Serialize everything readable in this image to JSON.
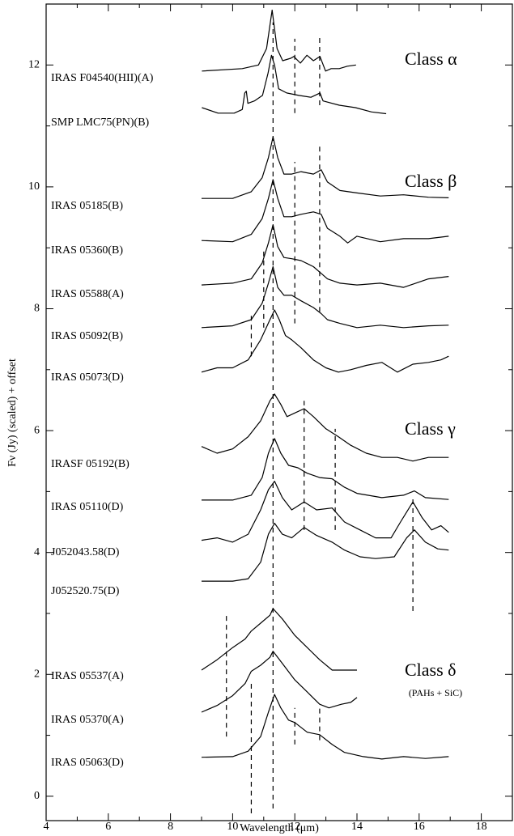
{
  "chart_data": {
    "type": "line",
    "xlabel": "Wavelength (μm)",
    "ylabel": "Fν (Jy) (scaled) + offset",
    "xlim": [
      4,
      19
    ],
    "ylim": [
      -0.4,
      13.0
    ],
    "xticks": [
      4,
      6,
      8,
      10,
      12,
      14,
      16,
      18
    ],
    "yticks": [
      0,
      2,
      4,
      6,
      8,
      10,
      12
    ],
    "line_color": "#000000",
    "annotations": [
      "Class α",
      "Class β",
      "Class γ",
      "Class δ",
      "(PAHs + SiC)"
    ],
    "series": [
      {
        "name": "IRAS F04540(HII)(A)",
        "x": [
          9.01,
          10.31,
          10.83,
          11.09,
          11.27,
          11.43,
          11.61,
          11.87,
          11.97,
          12.18,
          12.39,
          12.6,
          12.81,
          12.99,
          13.17,
          13.43,
          13.69,
          13.97
        ],
        "values": [
          11.9,
          11.94,
          12.0,
          12.27,
          12.9,
          12.27,
          12.07,
          12.11,
          12.14,
          12.03,
          12.16,
          12.07,
          12.14,
          11.9,
          11.94,
          11.94,
          11.98,
          12.0
        ]
      },
      {
        "name": "SMP LMC75(PN)(B)",
        "x": [
          9.01,
          9.53,
          10.05,
          10.31,
          10.39,
          10.44,
          10.49,
          10.7,
          10.96,
          11.14,
          11.25,
          11.35,
          11.48,
          11.74,
          12.13,
          12.52,
          12.81,
          12.91,
          13.43,
          13.95,
          14.47,
          14.94
        ],
        "values": [
          11.3,
          11.21,
          11.21,
          11.27,
          11.54,
          11.57,
          11.37,
          11.41,
          11.5,
          11.87,
          12.16,
          12.0,
          11.61,
          11.54,
          11.5,
          11.47,
          11.54,
          11.41,
          11.34,
          11.3,
          11.23,
          11.2
        ]
      },
      {
        "name": "IRAS 05185(B)",
        "x": [
          9.0,
          10.0,
          10.6,
          10.95,
          11.15,
          11.3,
          11.45,
          11.65,
          11.9,
          12.2,
          12.6,
          12.85,
          13.05,
          13.45,
          14.0,
          14.75,
          15.5,
          16.3,
          16.95
        ],
        "values": [
          9.81,
          9.81,
          9.92,
          10.15,
          10.48,
          10.82,
          10.48,
          10.21,
          10.21,
          10.25,
          10.21,
          10.28,
          10.08,
          9.94,
          9.9,
          9.85,
          9.87,
          9.83,
          9.82
        ]
      },
      {
        "name": "IRAS 05360(B)",
        "x": [
          9.0,
          10.0,
          10.6,
          10.95,
          11.15,
          11.3,
          11.45,
          11.65,
          11.9,
          12.2,
          12.6,
          12.85,
          13.05,
          13.45,
          13.7,
          14.0,
          14.75,
          15.5,
          16.3,
          16.95
        ],
        "values": [
          9.12,
          9.1,
          9.22,
          9.48,
          9.81,
          10.12,
          9.81,
          9.51,
          9.51,
          9.55,
          9.59,
          9.55,
          9.32,
          9.19,
          9.08,
          9.19,
          9.1,
          9.15,
          9.15,
          9.19
        ]
      },
      {
        "name": "IRAS 05588(A)",
        "x": [
          9.0,
          10.0,
          10.6,
          10.95,
          11.15,
          11.3,
          11.45,
          11.65,
          11.9,
          12.2,
          12.6,
          12.85,
          13.05,
          13.45,
          14.0,
          14.75,
          15.5,
          16.3,
          16.95
        ],
        "values": [
          8.39,
          8.42,
          8.49,
          8.75,
          9.08,
          9.38,
          9.02,
          8.84,
          8.82,
          8.79,
          8.69,
          8.58,
          8.49,
          8.42,
          8.39,
          8.42,
          8.35,
          8.49,
          8.53
        ]
      },
      {
        "name": "IRAS 05092(B)",
        "x": [
          9.0,
          10.0,
          10.6,
          10.95,
          11.15,
          11.3,
          11.45,
          11.65,
          11.9,
          12.2,
          12.6,
          12.85,
          13.05,
          13.45,
          14.0,
          14.75,
          15.5,
          16.3,
          16.95
        ],
        "values": [
          7.69,
          7.72,
          7.82,
          8.09,
          8.42,
          8.69,
          8.35,
          8.22,
          8.22,
          8.13,
          8.02,
          7.92,
          7.82,
          7.76,
          7.69,
          7.73,
          7.69,
          7.72,
          7.73
        ]
      },
      {
        "name": "IRAS 05073(D)",
        "x": [
          9.0,
          9.5,
          10.0,
          10.5,
          10.9,
          11.2,
          11.35,
          11.5,
          11.7,
          11.9,
          12.2,
          12.6,
          13.0,
          13.4,
          13.8,
          14.3,
          14.8,
          15.3,
          15.8,
          16.3,
          16.7,
          16.95
        ],
        "values": [
          6.96,
          7.03,
          7.03,
          7.16,
          7.49,
          7.82,
          7.98,
          7.82,
          7.56,
          7.49,
          7.36,
          7.16,
          7.03,
          6.96,
          7.0,
          7.07,
          7.12,
          6.96,
          7.09,
          7.12,
          7.16,
          7.22
        ]
      },
      {
        "name": "IRASF 05192(B)",
        "x": [
          9.0,
          9.5,
          10.0,
          10.5,
          10.9,
          11.2,
          11.35,
          11.55,
          11.75,
          12.0,
          12.3,
          12.6,
          13.0,
          13.4,
          13.8,
          14.3,
          14.8,
          15.3,
          15.8,
          16.3,
          16.95
        ],
        "values": [
          5.74,
          5.63,
          5.7,
          5.9,
          6.16,
          6.49,
          6.6,
          6.43,
          6.23,
          6.29,
          6.36,
          6.23,
          6.03,
          5.9,
          5.76,
          5.63,
          5.56,
          5.56,
          5.5,
          5.56,
          5.56
        ]
      },
      {
        "name": "IRAS 05110(D)",
        "x": [
          9.0,
          10.0,
          10.6,
          10.95,
          11.15,
          11.35,
          11.55,
          11.8,
          12.1,
          12.4,
          12.8,
          13.2,
          13.6,
          14.0,
          14.8,
          15.5,
          15.85,
          16.2,
          16.95
        ],
        "values": [
          4.86,
          4.86,
          4.94,
          5.23,
          5.63,
          5.87,
          5.63,
          5.43,
          5.39,
          5.3,
          5.23,
          5.21,
          5.07,
          4.97,
          4.9,
          4.94,
          5.01,
          4.9,
          4.87
        ]
      },
      {
        "name": "J052043.58(D)",
        "x": [
          9.0,
          9.5,
          10.0,
          10.5,
          10.9,
          11.15,
          11.35,
          11.6,
          11.9,
          12.3,
          12.7,
          13.2,
          13.6,
          14.1,
          14.6,
          15.1,
          15.4,
          15.8,
          16.1,
          16.4,
          16.7,
          16.95
        ],
        "values": [
          4.2,
          4.24,
          4.17,
          4.3,
          4.7,
          5.03,
          5.17,
          4.9,
          4.7,
          4.83,
          4.7,
          4.73,
          4.5,
          4.37,
          4.24,
          4.24,
          4.5,
          4.83,
          4.57,
          4.37,
          4.44,
          4.33
        ]
      },
      {
        "name": "J052520.75(D)",
        "x": [
          9.0,
          10.0,
          10.5,
          10.9,
          11.15,
          11.35,
          11.6,
          11.9,
          12.3,
          12.7,
          13.2,
          13.6,
          14.1,
          14.6,
          15.2,
          15.6,
          15.85,
          16.2,
          16.6,
          16.95
        ],
        "values": [
          3.53,
          3.53,
          3.57,
          3.84,
          4.3,
          4.48,
          4.3,
          4.24,
          4.41,
          4.28,
          4.17,
          4.04,
          3.93,
          3.9,
          3.93,
          4.24,
          4.37,
          4.17,
          4.06,
          4.04
        ]
      },
      {
        "name": "IRAS 05537(A)",
        "x": [
          9.0,
          9.5,
          10.0,
          10.4,
          10.6,
          10.9,
          11.2,
          11.3,
          11.6,
          12.0,
          12.4,
          12.8,
          13.2,
          13.6,
          14.0
        ],
        "values": [
          2.07,
          2.24,
          2.44,
          2.58,
          2.71,
          2.84,
          2.97,
          3.08,
          2.91,
          2.64,
          2.44,
          2.24,
          2.07,
          2.07,
          2.07
        ]
      },
      {
        "name": "IRAS 05370(A)",
        "x": [
          9.0,
          9.5,
          10.0,
          10.4,
          10.6,
          10.9,
          11.2,
          11.3,
          11.6,
          12.0,
          12.4,
          12.8,
          13.1,
          13.5,
          13.8,
          14.0
        ],
        "values": [
          1.38,
          1.49,
          1.65,
          1.85,
          2.05,
          2.15,
          2.28,
          2.38,
          2.18,
          1.91,
          1.71,
          1.51,
          1.45,
          1.51,
          1.54,
          1.62
        ]
      },
      {
        "name": "IRAS 05063(D)",
        "x": [
          9.0,
          10.0,
          10.5,
          10.9,
          11.15,
          11.35,
          11.55,
          11.8,
          12.0,
          12.4,
          12.8,
          13.2,
          13.6,
          14.2,
          14.8,
          15.5,
          16.2,
          16.95
        ],
        "values": [
          0.64,
          0.65,
          0.74,
          0.98,
          1.38,
          1.67,
          1.45,
          1.25,
          1.21,
          1.05,
          1.01,
          0.85,
          0.72,
          0.65,
          0.61,
          0.65,
          0.62,
          0.65
        ]
      }
    ],
    "reference_lines": [
      {
        "x": 11.3,
        "y0": -0.2,
        "y1": 12.7
      },
      {
        "x": 12.0,
        "y0": 11.21,
        "y1": 12.43
      },
      {
        "x": 12.8,
        "y0": 11.34,
        "y1": 12.47
      },
      {
        "x": 12.0,
        "y0": 7.76,
        "y1": 10.41
      },
      {
        "x": 12.8,
        "y0": 7.95,
        "y1": 10.68
      },
      {
        "x": 11.0,
        "y0": 7.69,
        "y1": 8.95
      },
      {
        "x": 10.6,
        "y0": 7.22,
        "y1": 7.89
      },
      {
        "x": 12.3,
        "y0": 4.37,
        "y1": 6.49
      },
      {
        "x": 13.3,
        "y0": 4.37,
        "y1": 6.03
      },
      {
        "x": 15.8,
        "y0": 3.04,
        "y1": 4.9
      },
      {
        "x": 9.8,
        "y0": 0.98,
        "y1": 2.97
      },
      {
        "x": 10.6,
        "y0": -0.28,
        "y1": 1.85
      },
      {
        "x": 12.0,
        "y0": 0.85,
        "y1": 1.45
      },
      {
        "x": 12.8,
        "y0": 0.92,
        "y1": 1.45
      }
    ]
  }
}
